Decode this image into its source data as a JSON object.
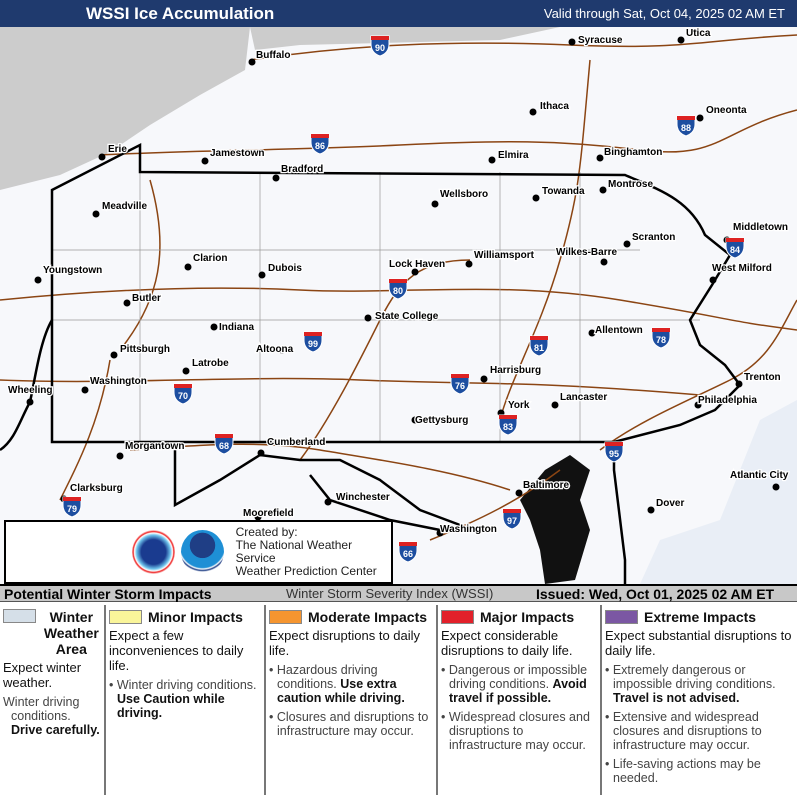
{
  "header": {
    "title": "WSSI Ice Accumulation",
    "valid": "Valid through Sat, Oct 04, 2025 02 AM ET"
  },
  "map": {
    "colors": {
      "land": "#f7f8fb",
      "water": "#cccccc",
      "roads": "#8b4513",
      "borders": "#000000"
    },
    "cities": [
      "Buffalo",
      "Syracuse",
      "Utica",
      "Ithaca",
      "Oneonta",
      "Erie",
      "Jamestown",
      "Elmira",
      "Binghamton",
      "Bradford",
      "Wellsboro",
      "Towanda",
      "Montrose",
      "Meadville",
      "Middletown",
      "Scranton",
      "Wilkes-Barre",
      "Williamsport",
      "Clarion",
      "Dubois",
      "Lock Haven",
      "West Milford",
      "Youngstown",
      "Butler",
      "State College",
      "Indiana",
      "Allentown",
      "Pittsburgh",
      "Latrobe",
      "Altoona",
      "Harrisburg",
      "Trenton",
      "Wheeling",
      "Washington",
      "Philadelphia",
      "Lancaster",
      "York",
      "Gettysburg",
      "Morgantown",
      "Cumberland",
      "Atlantic City",
      "Baltimore",
      "Clarksburg",
      "Dover",
      "Winchester",
      "Moorefield",
      "Washington"
    ],
    "interstates": [
      "90",
      "86",
      "88",
      "84",
      "80",
      "99",
      "81",
      "78",
      "76",
      "70",
      "83",
      "68",
      "95",
      "79",
      "97",
      "66"
    ]
  },
  "credit": {
    "line1": "Created by:",
    "line2": "The National Weather Service",
    "line3": "Weather Prediction Center",
    "logos": [
      "nws-logo",
      "noaa-logo"
    ]
  },
  "bar": {
    "left": "Potential Winter Storm Impacts",
    "mid": "Winter Storm Severity Index (WSSI)",
    "issued": "Issued: Wed, Oct 01, 2025 02 AM ET"
  },
  "legend": [
    {
      "color": "#d5dfe8",
      "title": "Winter Weather Area",
      "sub": "Expect winter weather.",
      "bullets": [
        {
          "t": "Winter driving conditions. ",
          "b": "Drive carefully."
        }
      ]
    },
    {
      "color": "#faf59a",
      "title": "Minor Impacts",
      "sub": "Expect a few inconveniences to daily life.",
      "bullets": [
        {
          "t": "Winter driving conditions. ",
          "b": "Use Caution while driving."
        }
      ]
    },
    {
      "color": "#f5952f",
      "title": "Moderate Impacts",
      "sub": "Expect disruptions to daily life.",
      "bullets": [
        {
          "t": "Hazardous driving conditions. ",
          "b": "Use extra caution while driving."
        },
        {
          "t": "Closures and disruptions to infrastructure may occur.",
          "b": ""
        }
      ]
    },
    {
      "color": "#e2202a",
      "title": "Major Impacts",
      "sub": "Expect considerable disruptions to daily life.",
      "bullets": [
        {
          "t": "Dangerous or impossible driving conditions. ",
          "b": "Avoid travel if possible."
        },
        {
          "t": "Widespread closures and disruptions to infrastructure may occur.",
          "b": ""
        }
      ]
    },
    {
      "color": "#7b57a3",
      "title": "Extreme Impacts",
      "sub": "Expect substantial disruptions to daily life.",
      "bullets": [
        {
          "t": "Extremely dangerous or impossible driving conditions. ",
          "b": "Travel is not advised."
        },
        {
          "t": "Extensive and widespread closures and disruptions to infrastructure may occur.",
          "b": ""
        },
        {
          "t": "Life-saving actions may be needed.",
          "b": ""
        }
      ]
    }
  ]
}
